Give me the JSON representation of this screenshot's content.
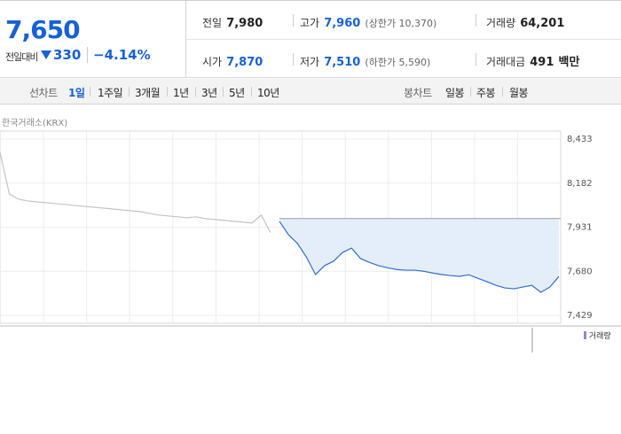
{
  "quote": {
    "price": "7,650",
    "change_label": "전일대비",
    "change": "330",
    "change_pct": "−4.14%"
  },
  "stats": [
    {
      "label": "전일",
      "value": "7,980"
    },
    {
      "label": "고가",
      "value": "7,960",
      "sub": "(상한가 10,370)"
    },
    {
      "label": "거래량",
      "value": "64,201"
    },
    {
      "label": "시가",
      "value": "7,870"
    },
    {
      "label": "저가",
      "value": "7,510",
      "sub": "(하한가 5,590)"
    },
    {
      "label": "거래대금",
      "value": "491",
      "unit": "백만"
    }
  ],
  "tabs": {
    "line_label": "선차트",
    "line": [
      "1일",
      "1주일",
      "3개월",
      "1년",
      "3년",
      "5년",
      "10년"
    ],
    "candle_label": "봉차트",
    "candle": [
      "일봉",
      "주봉",
      "월봉"
    ]
  },
  "chart": {
    "type": "line",
    "source": "한국거래소(KRX)",
    "ylim": [
      7429,
      8433
    ],
    "yticks": [
      {
        "value": 8433,
        "label": "8,433"
      },
      {
        "value": 8182,
        "label": "8,182"
      },
      {
        "value": 7931,
        "label": "7,931"
      },
      {
        "value": 7680,
        "label": "7,680"
      },
      {
        "value": 7429,
        "label": "7,429"
      }
    ],
    "reference": 7980,
    "series": [
      {
        "color": "#c4c4c4",
        "values": [
          8358,
          8120,
          8090,
          8080,
          8075,
          8070,
          8065,
          8060,
          8055,
          8050,
          8045,
          8040,
          8035,
          8030,
          8025,
          8020,
          8010,
          8000,
          7995,
          7990,
          7985,
          7990,
          7980,
          7975,
          7970,
          7965,
          7960,
          7955,
          8000,
          7900
        ]
      },
      {
        "color": "#2f6fcf",
        "values": [
          7964,
          7888,
          7838,
          7760,
          7661,
          7712,
          7737,
          7787,
          7812,
          7752,
          7730,
          7712,
          7700,
          7690,
          7686,
          7686,
          7680,
          7670,
          7661,
          7655,
          7651,
          7660,
          7640,
          7621,
          7600,
          7585,
          7580,
          7590,
          7600,
          7560,
          7590,
          7650
        ]
      }
    ],
    "volume_legend": "거래량"
  }
}
